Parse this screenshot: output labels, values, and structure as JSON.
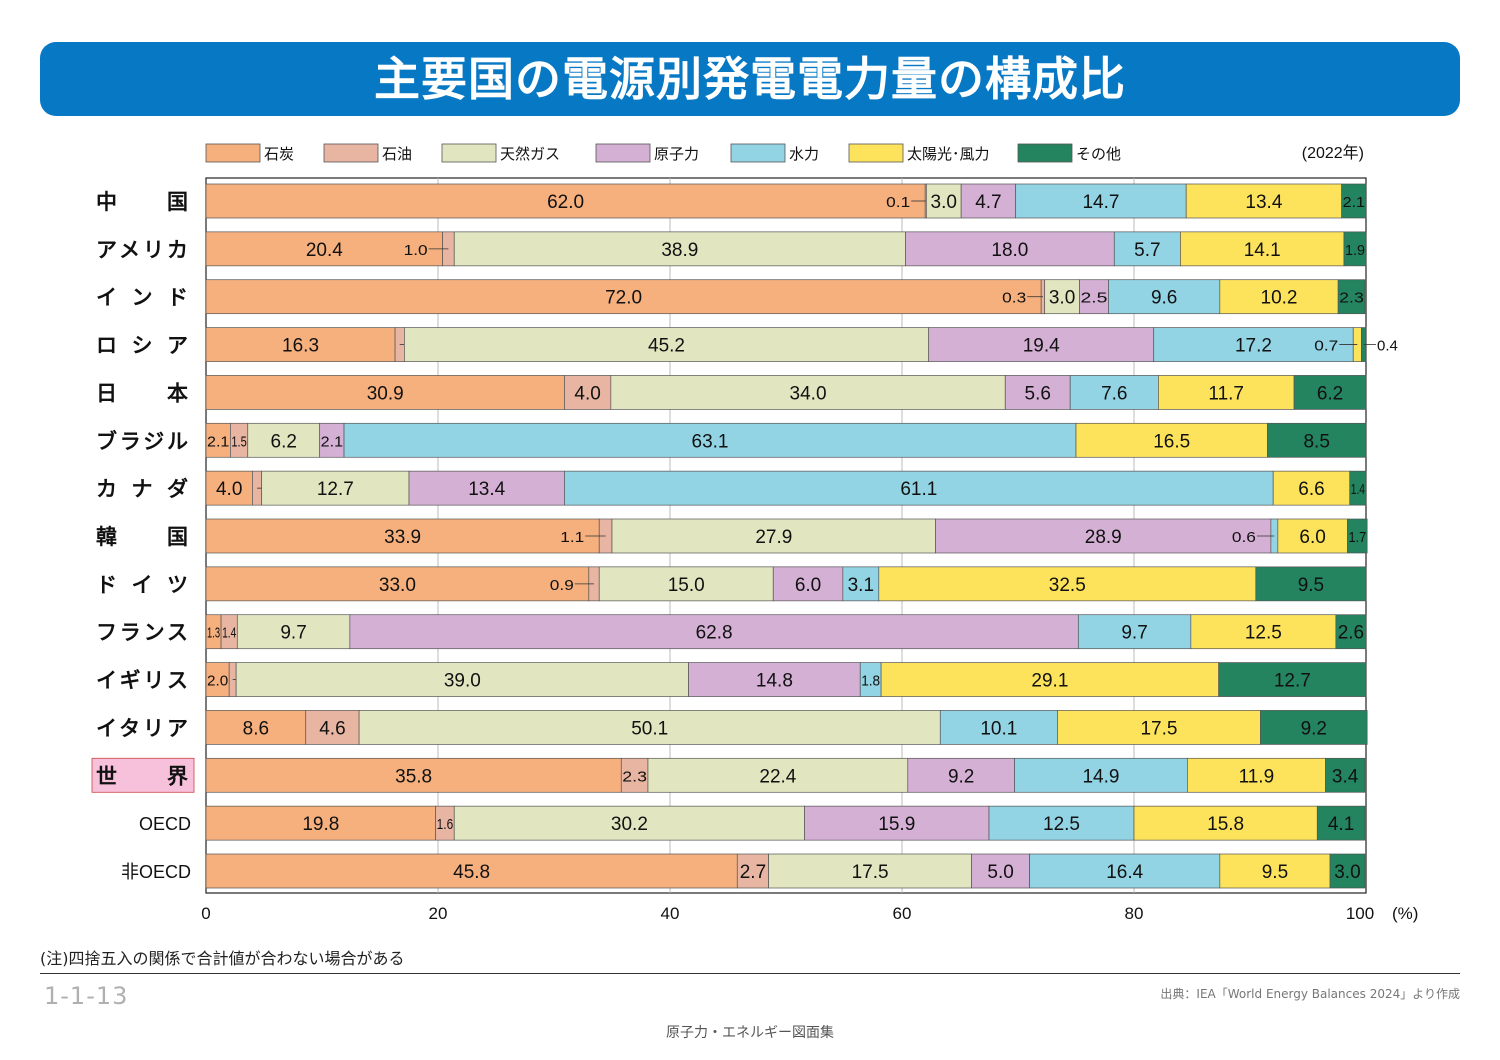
{
  "title": "主要国の電源別発電電力量の構成比",
  "note": "(注)四捨五入の関係で合計値が合わない場合がある",
  "figure_number": "1-1-13",
  "source": "出典：IEA「World Energy Balances 2024」より作成",
  "book": "原子力・エネルギー図面集",
  "chart_data": {
    "type": "bar",
    "orientation": "horizontal-stacked-100",
    "year_label": "(2022年)",
    "x_unit_label": "(%)",
    "xlim": [
      0,
      100
    ],
    "x_ticks": [
      0,
      20,
      40,
      60,
      80,
      100
    ],
    "grid": true,
    "legend_placement": "top",
    "series": [
      {
        "name": "石炭",
        "color": "#f5b07e"
      },
      {
        "name": "石油",
        "color": "#e8b5a3"
      },
      {
        "name": "天然ガス",
        "color": "#e2e6c0"
      },
      {
        "name": "原子力",
        "color": "#d4b0d4"
      },
      {
        "name": "水力",
        "color": "#92d3e4"
      },
      {
        "name": "太陽光･風力",
        "color": "#fde35c"
      },
      {
        "name": "その他",
        "color": "#24845f"
      }
    ],
    "categories": [
      "中国",
      "アメリカ",
      "インド",
      "ロシア",
      "日本",
      "ブラジル",
      "カナダ",
      "韓国",
      "ドイツ",
      "フランス",
      "イギリス",
      "イタリア",
      "世界",
      "OECD",
      "非OECD"
    ],
    "highlight_category": "世界",
    "values": [
      [
        62.0,
        0.1,
        3.0,
        4.7,
        14.7,
        13.4,
        2.1
      ],
      [
        20.4,
        1.0,
        38.9,
        18.0,
        5.7,
        14.1,
        1.9
      ],
      [
        72.0,
        0.3,
        3.0,
        2.5,
        9.6,
        10.2,
        2.3
      ],
      [
        16.3,
        0.8,
        45.2,
        19.4,
        17.2,
        0.7,
        0.4
      ],
      [
        30.9,
        4.0,
        34.0,
        5.6,
        7.6,
        11.7,
        6.2
      ],
      [
        2.1,
        1.5,
        6.2,
        2.1,
        63.1,
        16.5,
        8.5
      ],
      [
        4.0,
        0.8,
        12.7,
        13.4,
        61.1,
        6.6,
        1.4
      ],
      [
        33.9,
        1.1,
        27.9,
        28.9,
        0.6,
        6.0,
        1.7
      ],
      [
        33.0,
        0.9,
        15.0,
        6.0,
        3.1,
        32.5,
        9.5
      ],
      [
        1.3,
        1.4,
        9.7,
        62.8,
        9.7,
        12.5,
        2.6
      ],
      [
        2.0,
        0.6,
        39.0,
        14.8,
        1.8,
        29.1,
        12.7
      ],
      [
        8.6,
        4.6,
        50.1,
        null,
        10.1,
        17.5,
        9.2
      ],
      [
        35.8,
        2.3,
        22.4,
        9.2,
        14.9,
        11.9,
        3.4
      ],
      [
        19.8,
        1.6,
        30.2,
        15.9,
        12.5,
        15.8,
        4.1
      ],
      [
        45.8,
        2.7,
        17.5,
        5.0,
        16.4,
        9.5,
        3.0
      ]
    ]
  }
}
